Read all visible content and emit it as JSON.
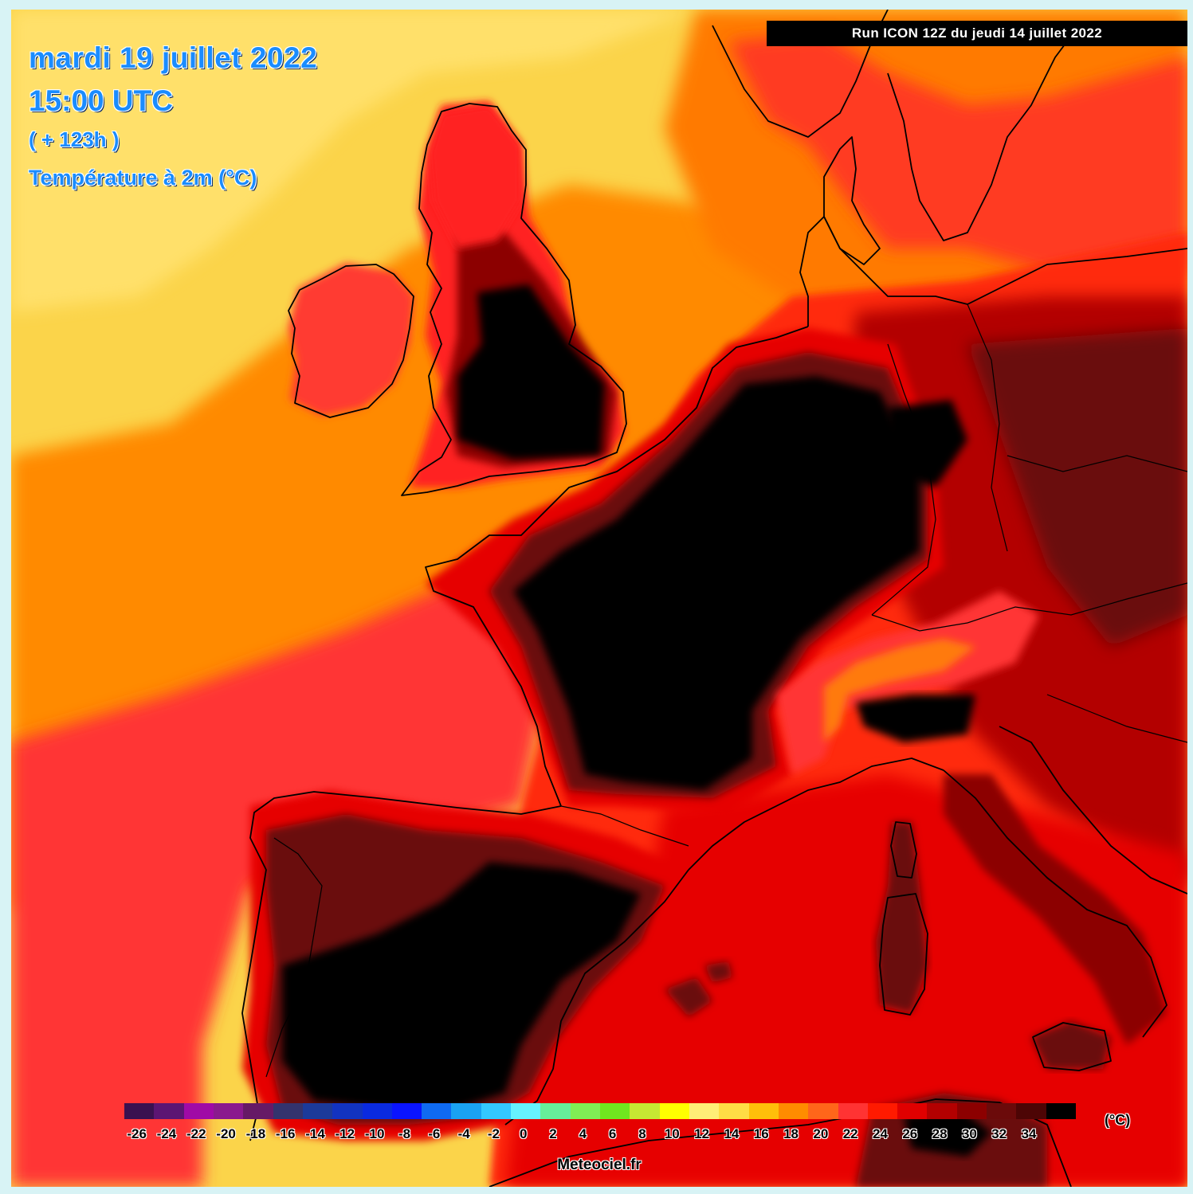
{
  "header": {
    "date": "mardi 19 juillet 2022",
    "time": "15:00 UTC",
    "lead": "( + 123h )",
    "parameter": "Température à 2m (°C)"
  },
  "run_label": "Run ICON 12Z  du jeudi 14 juillet 2022",
  "legend": {
    "unit": "(°C)",
    "tick_labels": [
      "-26",
      "-24",
      "-22",
      "-20",
      "-18",
      "-16",
      "-14",
      "-12",
      "-10",
      "-8",
      "-6",
      "-4",
      "-2",
      "0",
      "2",
      "4",
      "6",
      "8",
      "10",
      "12",
      "14",
      "16",
      "18",
      "20",
      "22",
      "24",
      "26",
      "28",
      "30",
      "32",
      "34"
    ],
    "colors": [
      "#3a1150",
      "#5c1573",
      "#a00aa6",
      "#8a1a8e",
      "#661a66",
      "#33336e",
      "#1c3a9a",
      "#1233c0",
      "#0a2ae0",
      "#0a14ff",
      "#0f6af2",
      "#1aa2f2",
      "#33c8ff",
      "#66f2ff",
      "#66ee9a",
      "#80ee55",
      "#70e61f",
      "#c6e833",
      "#ffff00",
      "#ffee77",
      "#ffdd45",
      "#ffbf0a",
      "#ff8c00",
      "#ff661a",
      "#ff3333",
      "#ff1a00",
      "#e00000",
      "#b30000",
      "#8c0000",
      "#6b0a0a",
      "#4d0505",
      "#000000"
    ]
  },
  "map_colors": {
    "sea_cool": "#fbd44a",
    "sea_pale": "#ffe47a",
    "orange": "#ff7a00",
    "orange_red": "#ff5a0a",
    "red": "#ff3030",
    "red_deep": "#e60000",
    "dark_red": "#b30000",
    "maroon": "#6b0a0a",
    "black": "#000000",
    "coast": "#000000"
  },
  "credit": "Meteociel.fr"
}
